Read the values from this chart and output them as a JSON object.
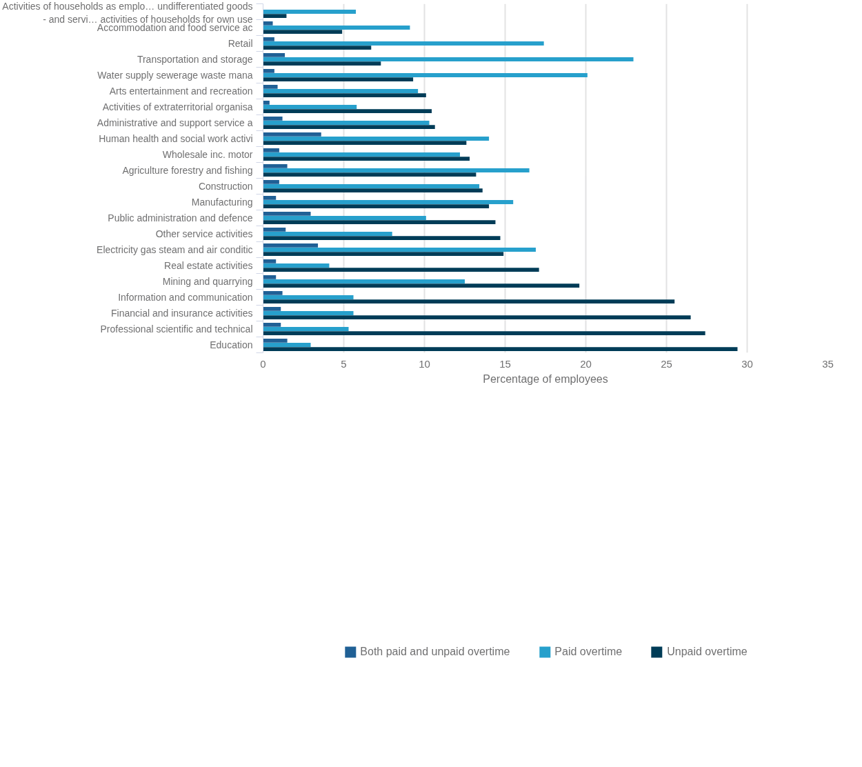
{
  "chart_data": {
    "type": "bar",
    "orientation": "horizontal",
    "xlabel": "Percentage of employees",
    "categories": [
      "Activities of households as emplo… undifferentiated goods - and servi… activities of households for own use",
      "Accommodation and food service ac",
      "Retail",
      "Transportation and storage",
      "Water supply sewerage waste mana",
      "Arts entertainment and recreation",
      "Activities of extraterritorial organisa",
      "Administrative and support service a",
      "Human health and social work activi",
      "Wholesale inc. motor",
      "Agriculture forestry and fishing",
      "Construction",
      "Manufacturing",
      "Public administration and defence",
      "Other service activities",
      "Electricity gas steam and air conditic",
      "Real estate activities",
      "Mining and quarrying",
      "Information and communication",
      "Financial and insurance activities",
      "Professional scientific and technical",
      "Education"
    ],
    "series": [
      {
        "name": "Both paid and unpaid overtime",
        "color": "#206095",
        "values": [
          null,
          0.6,
          0.7,
          1.35,
          0.7,
          0.9,
          0.4,
          1.2,
          3.6,
          1.0,
          1.5,
          1.0,
          0.8,
          2.95,
          1.4,
          3.4,
          0.8,
          0.8,
          1.2,
          1.1,
          1.1,
          1.5
        ]
      },
      {
        "name": "Paid overtime",
        "color": "#27a0cc",
        "values": [
          5.75,
          9.1,
          17.4,
          22.95,
          20.1,
          9.6,
          5.8,
          10.3,
          14.0,
          12.2,
          16.5,
          13.4,
          15.5,
          10.1,
          8.0,
          16.9,
          4.1,
          12.5,
          5.6,
          5.6,
          5.3,
          2.95
        ]
      },
      {
        "name": "Unpaid overtime",
        "color": "#003c57",
        "values": [
          1.45,
          4.9,
          6.7,
          7.3,
          9.3,
          10.1,
          10.45,
          10.65,
          12.6,
          12.8,
          13.2,
          13.6,
          14.0,
          14.4,
          14.7,
          14.9,
          17.1,
          19.6,
          25.5,
          26.5,
          27.4,
          29.4
        ]
      }
    ],
    "xlim": [
      0,
      35
    ],
    "xticks": [
      0,
      5,
      10,
      15,
      20,
      25,
      30,
      35
    ],
    "grid": "x",
    "legend": "bottom"
  }
}
